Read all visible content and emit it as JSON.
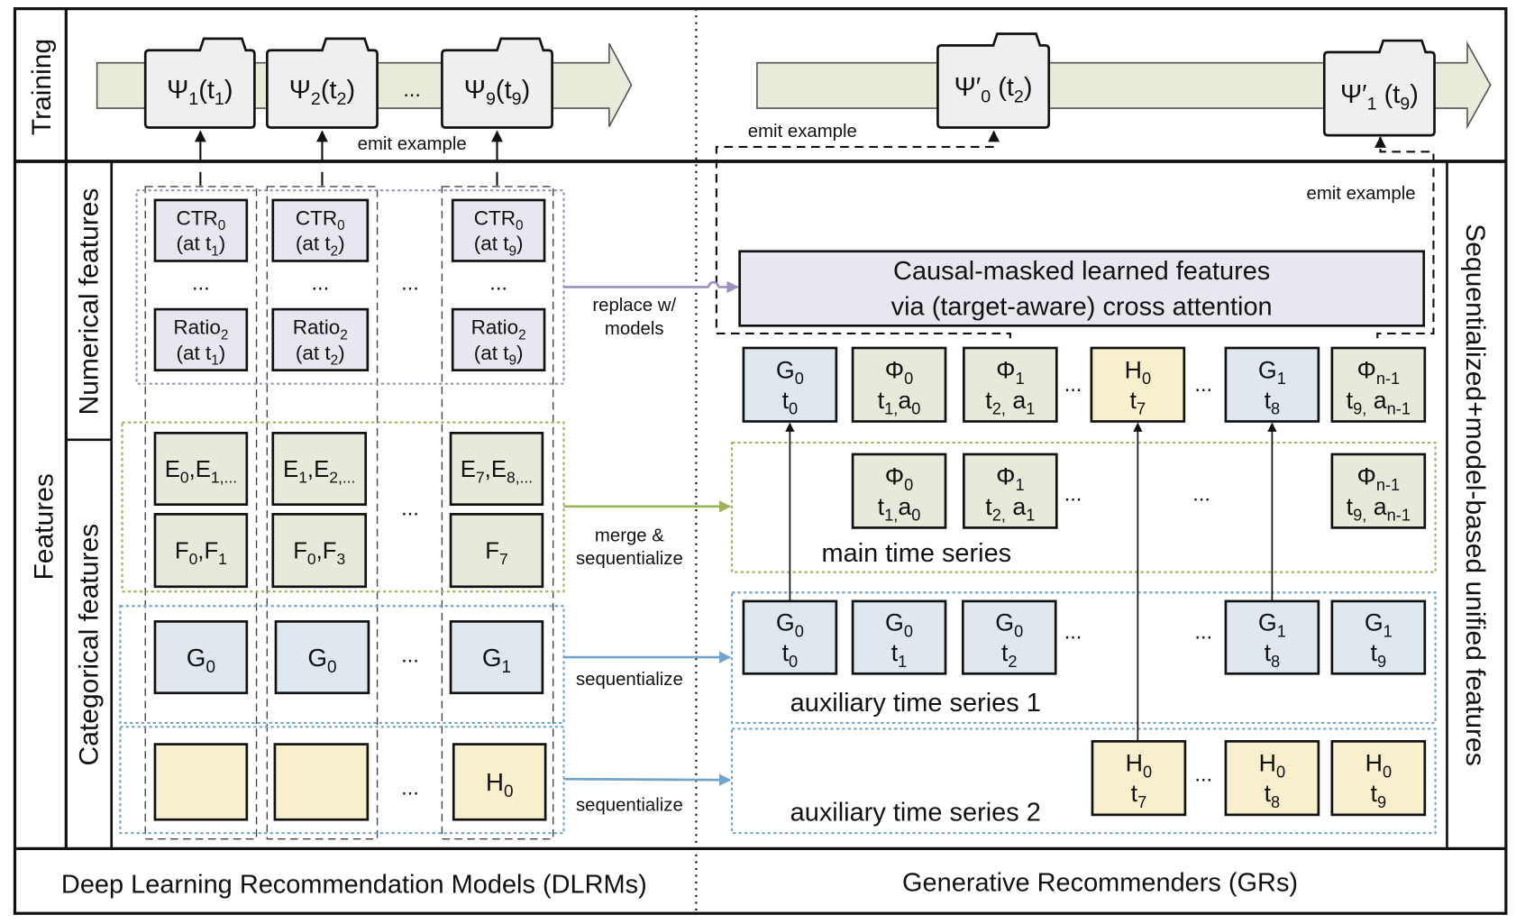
{
  "sections": {
    "training": "Training",
    "features": "Features",
    "numerical": "Numerical features",
    "categorical": "Categorical features",
    "unified": "Sequentialized+model-based unified features",
    "dlrm": "Deep Learning Recommendation Models (DLRMs)",
    "gr": "Generative Recommenders (GRs)"
  },
  "ellipsis": "...",
  "training": {
    "emit_dlrm": "emit example",
    "emit_gr_1": "emit example",
    "emit_gr_2": "emit example",
    "dlrm_snapshots": [
      [
        [
          {
            "t": "Ψ"
          },
          {
            "s": "1"
          },
          {
            "t": "(t"
          },
          {
            "s": "1"
          },
          {
            "t": ")"
          }
        ]
      ],
      [
        [
          {
            "t": "Ψ"
          },
          {
            "s": "2"
          },
          {
            "t": "(t"
          },
          {
            "s": "2"
          },
          {
            "t": ")"
          }
        ]
      ],
      [
        [
          {
            "t": "Ψ"
          },
          {
            "s": "9"
          },
          {
            "t": "(t"
          },
          {
            "s": "9"
          },
          {
            "t": ")"
          }
        ]
      ]
    ],
    "gr_snapshots": [
      [
        [
          {
            "t": "Ψ′"
          },
          {
            "s": "0"
          },
          {
            "t": " (t"
          },
          {
            "s": "2"
          },
          {
            "t": ")"
          }
        ]
      ],
      [
        [
          {
            "t": "Ψ′"
          },
          {
            "s": "1"
          },
          {
            "t": " (t"
          },
          {
            "s": "9"
          },
          {
            "t": ")"
          }
        ]
      ]
    ]
  },
  "middle_labels": {
    "replace_1": "replace w/",
    "replace_2": "models",
    "merge_1": "merge &",
    "merge_2": "sequentialize",
    "seq_1": "sequentialize",
    "seq_2": "sequentialize"
  },
  "dlrm_boxes": {
    "ctr": [
      [
        [
          {
            "t": "CTR"
          },
          {
            "s": "0"
          }
        ],
        [
          {
            "t": "(at t"
          },
          {
            "s": "1"
          },
          {
            "t": ")"
          }
        ]
      ],
      [
        [
          {
            "t": "CTR"
          },
          {
            "s": "0"
          }
        ],
        [
          {
            "t": "(at t"
          },
          {
            "s": "2"
          },
          {
            "t": ")"
          }
        ]
      ],
      [
        [
          {
            "t": "CTR"
          },
          {
            "s": "0"
          }
        ],
        [
          {
            "t": "(at t"
          },
          {
            "s": "9"
          },
          {
            "t": ")"
          }
        ]
      ]
    ],
    "ratio": [
      [
        [
          {
            "t": "Ratio"
          },
          {
            "s": "2"
          }
        ],
        [
          {
            "t": "(at t"
          },
          {
            "s": "1"
          },
          {
            "t": ")"
          }
        ]
      ],
      [
        [
          {
            "t": "Ratio"
          },
          {
            "s": "2"
          }
        ],
        [
          {
            "t": "(at t"
          },
          {
            "s": "2"
          },
          {
            "t": ")"
          }
        ]
      ],
      [
        [
          {
            "t": "Ratio"
          },
          {
            "s": "2"
          }
        ],
        [
          {
            "t": "(at t"
          },
          {
            "s": "9"
          },
          {
            "t": ")"
          }
        ]
      ]
    ],
    "e": [
      [
        [
          {
            "t": "E"
          },
          {
            "s": "0"
          },
          {
            "t": ",E"
          },
          {
            "s": "1,..."
          }
        ]
      ],
      [
        [
          {
            "t": "E"
          },
          {
            "s": "1"
          },
          {
            "t": ",E"
          },
          {
            "s": "2,..."
          }
        ]
      ],
      [
        [
          {
            "t": "E"
          },
          {
            "s": "7"
          },
          {
            "t": ",E"
          },
          {
            "s": "8,..."
          }
        ]
      ]
    ],
    "f": [
      [
        [
          {
            "t": "F"
          },
          {
            "s": "0"
          },
          {
            "t": ",F"
          },
          {
            "s": "1"
          }
        ]
      ],
      [
        [
          {
            "t": "F"
          },
          {
            "s": "0"
          },
          {
            "t": ",F"
          },
          {
            "s": "3"
          }
        ]
      ],
      [
        [
          {
            "t": "F"
          },
          {
            "s": "7"
          }
        ]
      ]
    ],
    "g": [
      [
        [
          {
            "t": "G"
          },
          {
            "s": "0"
          }
        ]
      ],
      [
        [
          {
            "t": "G"
          },
          {
            "s": "0"
          }
        ]
      ],
      [
        [
          {
            "t": "G"
          },
          {
            "s": "1"
          }
        ]
      ]
    ],
    "h": [
      [],
      [],
      [
        [
          {
            "t": "H"
          },
          {
            "s": "0"
          }
        ]
      ]
    ]
  },
  "gr": {
    "causal_1": "Causal-masked learned features",
    "causal_2": "via (target-aware) cross attention",
    "main_label": "main time series",
    "aux1_label": "auxiliary time series 1",
    "aux2_label": "auxiliary time series 2",
    "unified_row": [
      {
        "kind": "g",
        "lines": [
          [
            {
              "t": "G"
            },
            {
              "s": "0"
            }
          ],
          [
            {
              "t": "t"
            },
            {
              "s": "0"
            }
          ]
        ]
      },
      {
        "kind": "phi",
        "lines": [
          [
            {
              "t": "Φ"
            },
            {
              "s": "0"
            }
          ],
          [
            {
              "t": "t"
            },
            {
              "s": "1,"
            },
            {
              "t": "a"
            },
            {
              "s": "0"
            }
          ]
        ]
      },
      {
        "kind": "phi",
        "lines": [
          [
            {
              "t": "Φ"
            },
            {
              "s": "1"
            }
          ],
          [
            {
              "t": "t"
            },
            {
              "s": "2,"
            },
            {
              "t": " a"
            },
            {
              "s": "1"
            }
          ]
        ]
      },
      {
        "kind": "h",
        "lines": [
          [
            {
              "t": "H"
            },
            {
              "s": "0"
            }
          ],
          [
            {
              "t": "t"
            },
            {
              "s": "7"
            }
          ]
        ]
      },
      {
        "kind": "g",
        "lines": [
          [
            {
              "t": "G"
            },
            {
              "s": "1"
            }
          ],
          [
            {
              "t": "t"
            },
            {
              "s": "8"
            }
          ]
        ]
      },
      {
        "kind": "phi",
        "lines": [
          [
            {
              "t": "Φ"
            },
            {
              "s": "n-1"
            }
          ],
          [
            {
              "t": "t"
            },
            {
              "s": "9,"
            },
            {
              "t": " a"
            },
            {
              "s": "n-1"
            }
          ]
        ]
      }
    ],
    "main_row": [
      {
        "kind": "phi",
        "lines": [
          [
            {
              "t": "Φ"
            },
            {
              "s": "0"
            }
          ],
          [
            {
              "t": "t"
            },
            {
              "s": "1,"
            },
            {
              "t": "a"
            },
            {
              "s": "0"
            }
          ]
        ]
      },
      {
        "kind": "phi",
        "lines": [
          [
            {
              "t": "Φ"
            },
            {
              "s": "1"
            }
          ],
          [
            {
              "t": "t"
            },
            {
              "s": "2,"
            },
            {
              "t": " a"
            },
            {
              "s": "1"
            }
          ]
        ]
      },
      {
        "kind": "phi",
        "lines": [
          [
            {
              "t": "Φ"
            },
            {
              "s": "n-1"
            }
          ],
          [
            {
              "t": "t"
            },
            {
              "s": "9,"
            },
            {
              "t": " a"
            },
            {
              "s": "n-1"
            }
          ]
        ]
      }
    ],
    "aux1_row": [
      {
        "kind": "g",
        "lines": [
          [
            {
              "t": "G"
            },
            {
              "s": "0"
            }
          ],
          [
            {
              "t": "t"
            },
            {
              "s": "0"
            }
          ]
        ]
      },
      {
        "kind": "g",
        "lines": [
          [
            {
              "t": "G"
            },
            {
              "s": "0"
            }
          ],
          [
            {
              "t": "t"
            },
            {
              "s": "1"
            }
          ]
        ]
      },
      {
        "kind": "g",
        "lines": [
          [
            {
              "t": "G"
            },
            {
              "s": "0"
            }
          ],
          [
            {
              "t": "t"
            },
            {
              "s": "2"
            }
          ]
        ]
      },
      {
        "kind": "g",
        "lines": [
          [
            {
              "t": "G"
            },
            {
              "s": "1"
            }
          ],
          [
            {
              "t": "t"
            },
            {
              "s": "8"
            }
          ]
        ]
      },
      {
        "kind": "g",
        "lines": [
          [
            {
              "t": "G"
            },
            {
              "s": "1"
            }
          ],
          [
            {
              "t": "t"
            },
            {
              "s": "9"
            }
          ]
        ]
      }
    ],
    "aux2_row": [
      {
        "kind": "h",
        "lines": [
          [
            {
              "t": "H"
            },
            {
              "s": "0"
            }
          ],
          [
            {
              "t": "t"
            },
            {
              "s": "7"
            }
          ]
        ]
      },
      {
        "kind": "h",
        "lines": [
          [
            {
              "t": "H"
            },
            {
              "s": "0"
            }
          ],
          [
            {
              "t": "t"
            },
            {
              "s": "8"
            }
          ]
        ]
      },
      {
        "kind": "h",
        "lines": [
          [
            {
              "t": "H"
            },
            {
              "s": "0"
            }
          ],
          [
            {
              "t": "t"
            },
            {
              "s": "9"
            }
          ]
        ]
      }
    ]
  },
  "colors": {
    "snapshot": "#efefef",
    "band": "#e6ebda",
    "numerical": "#e8e6ee",
    "phi": "#e6eadb",
    "g": "#dfe8ef",
    "h": "#f8efcc",
    "causal": "#e9e6ef",
    "purple": "#9d90bd",
    "green": "#9db35a",
    "blue": "#73a3c8"
  }
}
